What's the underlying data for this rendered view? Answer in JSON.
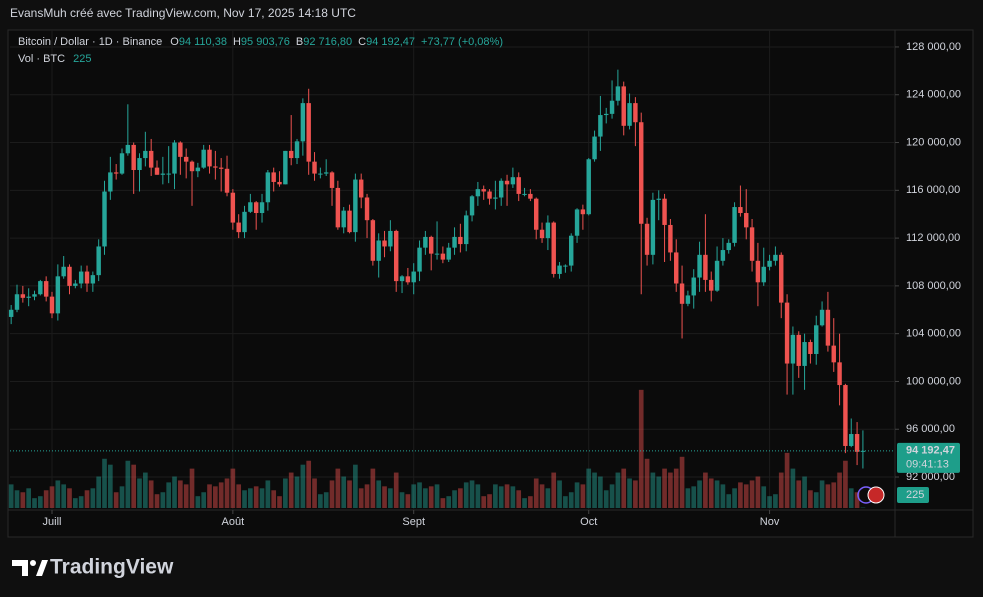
{
  "watermark": "EvansMuh créé avec TradingView.com, Nov 17, 2025 14:18 UTC",
  "brand": "TradingView",
  "chart_data": {
    "type": "candlestick",
    "title": "Bitcoin / Dollar · 1D · Binance",
    "legend": [
      {
        "key": "O",
        "value": "94 110,38"
      },
      {
        "key": "H",
        "value": "95 903,76"
      },
      {
        "key": "B",
        "value": "92 716,80"
      },
      {
        "key": "C",
        "value": "94 192,47"
      }
    ],
    "change": "+73,77 (+0,08%)",
    "volume_title": "Vol · BTC",
    "last_price_label": "94 192,47",
    "countdown": "09:41:13",
    "up_color": "#26a69a",
    "down_color": "#ef5350",
    "grid": true,
    "xlim": [
      -0.2,
      151.5
    ],
    "xticks": [
      {
        "value": 7,
        "label": "Juill"
      },
      {
        "value": 38,
        "label": "Août"
      },
      {
        "value": 69,
        "label": "Sept"
      },
      {
        "value": 99,
        "label": "Oct"
      },
      {
        "value": 130,
        "label": "Nov"
      }
    ],
    "ylim": [
      89240,
      129420
    ],
    "yticks": [
      {
        "value": 128000,
        "label": "128 000,00"
      },
      {
        "value": 124000,
        "label": "124 000,00"
      },
      {
        "value": 120000,
        "label": "120 000,00"
      },
      {
        "value": 116000,
        "label": "116 000,00"
      },
      {
        "value": 112000,
        "label": "112 000,00"
      },
      {
        "value": 108000,
        "label": "108 000,00"
      },
      {
        "value": 104000,
        "label": "104 000,00"
      },
      {
        "value": 100000,
        "label": "100 000,00"
      },
      {
        "value": 96000,
        "label": "96 000,00"
      },
      {
        "value": 92000,
        "label": "92 000,00"
      }
    ],
    "volume_ylim": [
      0,
      65000
    ],
    "candles": [
      [
        105400,
        106400,
        104800,
        106000
      ],
      [
        106000,
        108100,
        105800,
        107300
      ],
      [
        107300,
        108000,
        106600,
        107000
      ],
      [
        107000,
        107800,
        106300,
        107100
      ],
      [
        107100,
        107600,
        106800,
        107300
      ],
      [
        107300,
        108500,
        107200,
        108400
      ],
      [
        108400,
        108800,
        106700,
        107100
      ],
      [
        107100,
        107500,
        105300,
        105700
      ],
      [
        105700,
        109800,
        105100,
        108800
      ],
      [
        108800,
        110500,
        108600,
        109600
      ],
      [
        109600,
        109800,
        107300,
        108000
      ],
      [
        108000,
        108500,
        107800,
        108200
      ],
      [
        108200,
        109700,
        107800,
        109200
      ],
      [
        109200,
        109700,
        107500,
        108200
      ],
      [
        108200,
        109200,
        107500,
        108900
      ],
      [
        108900,
        111900,
        108400,
        111300
      ],
      [
        111300,
        116800,
        110600,
        115900
      ],
      [
        115900,
        118800,
        115200,
        117500
      ],
      [
        117500,
        118200,
        116900,
        117400
      ],
      [
        117400,
        119500,
        117300,
        119100
      ],
      [
        119100,
        123200,
        118900,
        119800
      ],
      [
        119800,
        120000,
        115700,
        117700
      ],
      [
        117700,
        119100,
        115900,
        118700
      ],
      [
        118700,
        120900,
        118000,
        119300
      ],
      [
        119300,
        120300,
        117200,
        117900
      ],
      [
        117900,
        118500,
        117300,
        117300
      ],
      [
        117300,
        118800,
        116500,
        117400
      ],
      [
        117400,
        119700,
        116600,
        117400
      ],
      [
        117400,
        120200,
        116100,
        120000
      ],
      [
        120000,
        120100,
        117300,
        118800
      ],
      [
        118800,
        119500,
        117000,
        118400
      ],
      [
        118400,
        118500,
        114700,
        117600
      ],
      [
        117600,
        118300,
        117100,
        117900
      ],
      [
        117900,
        119800,
        117800,
        119400
      ],
      [
        119400,
        119800,
        117400,
        118000
      ],
      [
        118000,
        119300,
        116900,
        117900
      ],
      [
        117900,
        118700,
        115900,
        117800
      ],
      [
        117800,
        118900,
        115500,
        115800
      ],
      [
        115800,
        116100,
        112700,
        113300
      ],
      [
        113300,
        114000,
        112000,
        112500
      ],
      [
        112500,
        114700,
        112000,
        114200
      ],
      [
        114200,
        115700,
        114100,
        115000
      ],
      [
        115000,
        115100,
        112700,
        114100
      ],
      [
        114100,
        115700,
        113300,
        115000
      ],
      [
        115000,
        117700,
        114300,
        117500
      ],
      [
        117500,
        117900,
        115900,
        116700
      ],
      [
        116700,
        117600,
        116300,
        116500
      ],
      [
        116500,
        119300,
        116500,
        119300
      ],
      [
        119300,
        122300,
        118100,
        118700
      ],
      [
        118700,
        120300,
        118200,
        120100
      ],
      [
        120100,
        123700,
        118900,
        123300
      ],
      [
        123300,
        124500,
        117300,
        118400
      ],
      [
        118400,
        119200,
        116800,
        117400
      ],
      [
        117400,
        117900,
        117000,
        117400
      ],
      [
        117400,
        118600,
        117200,
        117500
      ],
      [
        117500,
        117600,
        114700,
        116200
      ],
      [
        116200,
        116800,
        112700,
        112900
      ],
      [
        112900,
        114600,
        112400,
        114300
      ],
      [
        114300,
        114800,
        112400,
        112500
      ],
      [
        112500,
        117400,
        111700,
        116900
      ],
      [
        116900,
        117400,
        114500,
        115400
      ],
      [
        115400,
        115700,
        112000,
        113500
      ],
      [
        113500,
        113600,
        109700,
        110100
      ],
      [
        110100,
        112400,
        108700,
        111800
      ],
      [
        111800,
        112600,
        110400,
        111300
      ],
      [
        111300,
        113500,
        110900,
        112600
      ],
      [
        112600,
        112700,
        107500,
        108400
      ],
      [
        108400,
        108900,
        107400,
        108800
      ],
      [
        108800,
        109500,
        108100,
        108300
      ],
      [
        108300,
        109900,
        107300,
        109200
      ],
      [
        109200,
        111800,
        108400,
        111200
      ],
      [
        111200,
        112600,
        110600,
        112100
      ],
      [
        112100,
        112200,
        109300,
        110700
      ],
      [
        110700,
        113400,
        110200,
        110700
      ],
      [
        110700,
        111300,
        109900,
        110200
      ],
      [
        110200,
        111600,
        110000,
        111200
      ],
      [
        111200,
        112900,
        110600,
        112100
      ],
      [
        112100,
        113200,
        110800,
        111500
      ],
      [
        111500,
        114300,
        110900,
        113900
      ],
      [
        113900,
        115600,
        113400,
        115500
      ],
      [
        115500,
        116700,
        114700,
        116100
      ],
      [
        116100,
        116400,
        115200,
        115900
      ],
      [
        115900,
        116100,
        114800,
        115300
      ],
      [
        115300,
        116800,
        114400,
        115400
      ],
      [
        115400,
        117000,
        114700,
        116800
      ],
      [
        116800,
        117300,
        114700,
        116500
      ],
      [
        116500,
        117900,
        116200,
        117100
      ],
      [
        117100,
        117500,
        115100,
        115700
      ],
      [
        115700,
        116200,
        115500,
        115700
      ],
      [
        115700,
        116100,
        115100,
        115300
      ],
      [
        115300,
        115400,
        111900,
        112700
      ],
      [
        112700,
        113300,
        111600,
        112000
      ],
      [
        112000,
        113900,
        111000,
        113300
      ],
      [
        113300,
        113400,
        108700,
        109000
      ],
      [
        109000,
        110000,
        108600,
        109700
      ],
      [
        109700,
        109800,
        109100,
        109700
      ],
      [
        109700,
        112400,
        109200,
        112200
      ],
      [
        112200,
        114500,
        111600,
        114400
      ],
      [
        114400,
        114800,
        112700,
        114000
      ],
      [
        114000,
        118700,
        113900,
        118600
      ],
      [
        118600,
        121000,
        118400,
        120500
      ],
      [
        120500,
        123900,
        119300,
        122300
      ],
      [
        122300,
        122900,
        121600,
        122400
      ],
      [
        122400,
        125200,
        122000,
        123500
      ],
      [
        123500,
        126100,
        123100,
        124700
      ],
      [
        124700,
        125100,
        120600,
        121400
      ],
      [
        121400,
        124100,
        121100,
        123300
      ],
      [
        123300,
        123800,
        119700,
        121700
      ],
      [
        121700,
        122500,
        107300,
        113200
      ],
      [
        113200,
        113700,
        109700,
        110600
      ],
      [
        110600,
        115800,
        109800,
        115200
      ],
      [
        115200,
        116000,
        113500,
        115300
      ],
      [
        115300,
        115700,
        110000,
        113100
      ],
      [
        113100,
        113600,
        110100,
        110800
      ],
      [
        110800,
        111900,
        107500,
        108200
      ],
      [
        108200,
        109700,
        103600,
        106500
      ],
      [
        106500,
        107600,
        106300,
        107200
      ],
      [
        107200,
        109400,
        106100,
        108700
      ],
      [
        108700,
        111700,
        107500,
        110600
      ],
      [
        110600,
        114000,
        107500,
        108500
      ],
      [
        108500,
        109200,
        106700,
        107600
      ],
      [
        107600,
        111300,
        107500,
        110100
      ],
      [
        110100,
        112000,
        109700,
        111000
      ],
      [
        111000,
        111900,
        110700,
        111600
      ],
      [
        111600,
        115000,
        111300,
        114600
      ],
      [
        114600,
        116400,
        113800,
        114100
      ],
      [
        114100,
        116100,
        111900,
        112900
      ],
      [
        112900,
        113600,
        109200,
        110100
      ],
      [
        110100,
        111600,
        106300,
        108300
      ],
      [
        108300,
        111200,
        108000,
        109600
      ],
      [
        109600,
        110600,
        109300,
        110100
      ],
      [
        110100,
        111300,
        109700,
        110600
      ],
      [
        110600,
        110800,
        105300,
        106600
      ],
      [
        106600,
        107300,
        98900,
        101500
      ],
      [
        101500,
        104600,
        98900,
        103900
      ],
      [
        103900,
        104200,
        100300,
        101300
      ],
      [
        101300,
        104000,
        99300,
        103300
      ],
      [
        103300,
        103500,
        101500,
        102300
      ],
      [
        102300,
        105500,
        101400,
        104700
      ],
      [
        104700,
        106700,
        104600,
        106000
      ],
      [
        106000,
        107500,
        102500,
        103000
      ],
      [
        103000,
        105300,
        100800,
        101600
      ],
      [
        101600,
        104000,
        98000,
        99700
      ],
      [
        99700,
        99800,
        94000,
        94600
      ],
      [
        94600,
        96900,
        94500,
        95600
      ],
      [
        95600,
        96600,
        93000,
        94110.38
      ],
      [
        94110.38,
        95903.76,
        92716.8,
        94192.47
      ]
    ],
    "volume": [
      12000,
      9000,
      8000,
      10000,
      5000,
      6000,
      9000,
      11000,
      14000,
      12000,
      10000,
      5000,
      6000,
      9000,
      10000,
      16000,
      25000,
      22000,
      8000,
      11000,
      24000,
      22000,
      15000,
      18000,
      14000,
      7000,
      8000,
      13000,
      16000,
      14000,
      12000,
      20000,
      6000,
      8000,
      12000,
      11000,
      13000,
      15000,
      20000,
      12000,
      9000,
      10000,
      11000,
      10000,
      14000,
      9000,
      6000,
      15000,
      18000,
      16000,
      22000,
      24000,
      15000,
      7000,
      8000,
      14000,
      20000,
      16000,
      14000,
      22000,
      10000,
      12000,
      20000,
      14000,
      11000,
      10000,
      18000,
      8000,
      7000,
      12000,
      13000,
      10000,
      11000,
      12000,
      5000,
      6000,
      9000,
      10000,
      13000,
      14000,
      12000,
      6000,
      7000,
      12000,
      11000,
      12000,
      11000,
      9000,
      5000,
      6000,
      15000,
      12000,
      10000,
      18000,
      14000,
      6000,
      8000,
      13000,
      12000,
      20000,
      18000,
      16000,
      9000,
      12000,
      18000,
      20000,
      15000,
      14000,
      60000,
      25000,
      18000,
      16000,
      20000,
      18000,
      20000,
      26000,
      10000,
      11000,
      14000,
      18000,
      15000,
      14000,
      12000,
      7000,
      10000,
      13000,
      12000,
      14000,
      16000,
      11000,
      6000,
      7000,
      18000,
      28000,
      20000,
      14000,
      16000,
      9000,
      8000,
      14000,
      12000,
      13000,
      18000,
      24000,
      10000,
      8000,
      225
    ]
  }
}
